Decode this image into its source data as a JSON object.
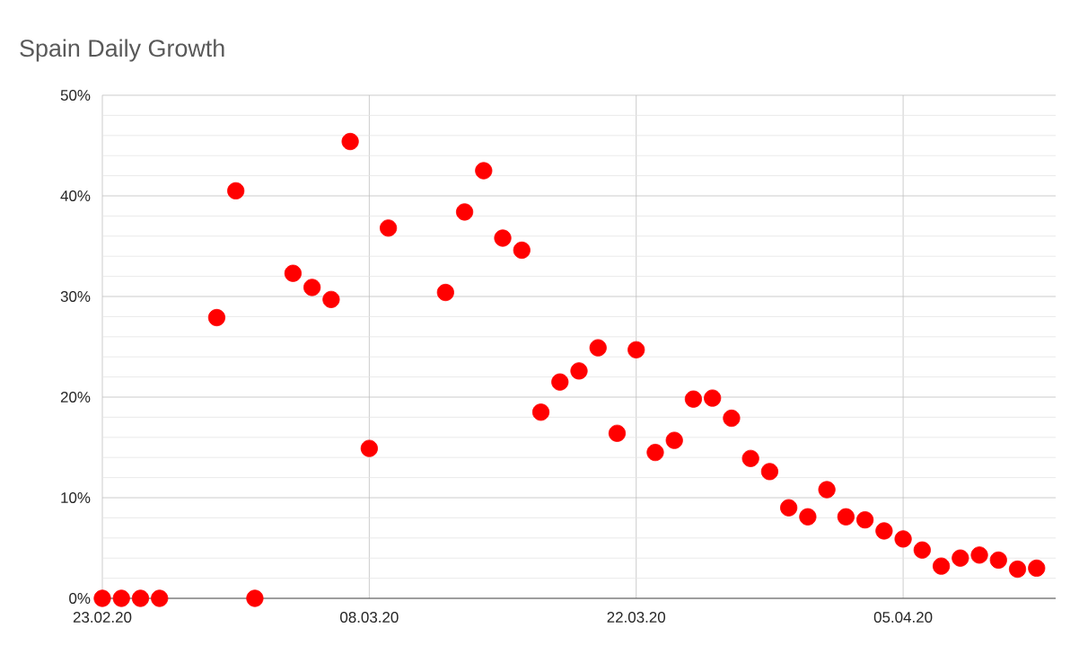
{
  "chart_data": {
    "type": "scatter",
    "title": "Spain Daily Growth",
    "x": [
      "2020-02-23",
      "2020-02-24",
      "2020-02-25",
      "2020-02-26",
      "2020-02-29",
      "2020-03-01",
      "2020-03-02",
      "2020-03-04",
      "2020-03-05",
      "2020-03-06",
      "2020-03-07",
      "2020-03-08",
      "2020-03-09",
      "2020-03-12",
      "2020-03-13",
      "2020-03-14",
      "2020-03-15",
      "2020-03-16",
      "2020-03-17",
      "2020-03-18",
      "2020-03-19",
      "2020-03-20",
      "2020-03-21",
      "2020-03-22",
      "2020-03-23",
      "2020-03-24",
      "2020-03-25",
      "2020-03-26",
      "2020-03-27",
      "2020-03-28",
      "2020-03-29",
      "2020-03-30",
      "2020-03-31",
      "2020-04-01",
      "2020-04-02",
      "2020-04-03",
      "2020-04-04",
      "2020-04-05",
      "2020-04-06",
      "2020-04-07",
      "2020-04-08",
      "2020-04-09",
      "2020-04-10",
      "2020-04-11",
      "2020-04-12"
    ],
    "values": [
      0,
      0,
      0,
      0,
      27.9,
      40.5,
      0,
      32.3,
      30.9,
      29.7,
      45.4,
      14.9,
      36.8,
      30.4,
      38.4,
      42.5,
      35.8,
      34.6,
      18.5,
      21.5,
      22.6,
      24.9,
      16.4,
      24.7,
      14.5,
      15.7,
      19.8,
      19.9,
      17.9,
      13.9,
      12.6,
      9.0,
      8.1,
      10.8,
      8.1,
      7.8,
      6.7,
      5.9,
      4.8,
      3.2,
      4.0,
      4.3,
      3.8,
      2.9,
      3.0
    ],
    "color": "#ff0000",
    "marker": "circle",
    "grid": true,
    "xlim": [
      "2020-02-23",
      "2020-04-13"
    ],
    "xticks": [
      {
        "value": "2020-02-23",
        "label": "23.02.20"
      },
      {
        "value": "2020-03-08",
        "label": "08.03.20"
      },
      {
        "value": "2020-03-22",
        "label": "22.03.20"
      },
      {
        "value": "2020-04-05",
        "label": "05.04.20"
      }
    ],
    "ylim": [
      0,
      50
    ],
    "yticks": [
      {
        "value": 0,
        "label": "0%"
      },
      {
        "value": 10,
        "label": "10%"
      },
      {
        "value": 20,
        "label": "20%"
      },
      {
        "value": 30,
        "label": "30%"
      },
      {
        "value": 40,
        "label": "40%"
      },
      {
        "value": 50,
        "label": "50%"
      }
    ]
  }
}
